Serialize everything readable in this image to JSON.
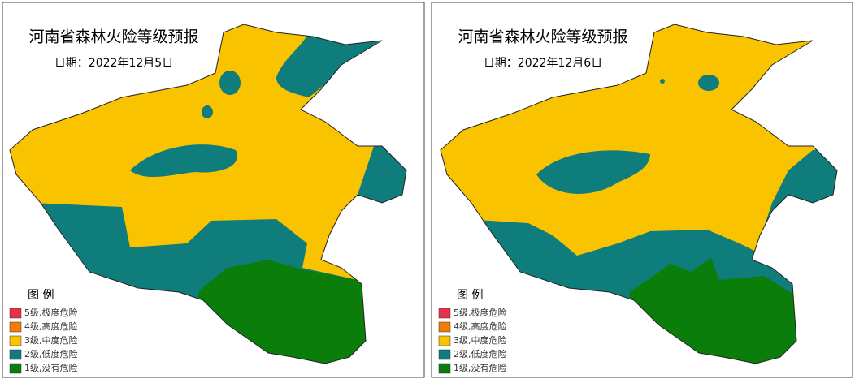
{
  "panels": [
    {
      "title": "河南省森林火险等级预报",
      "date": "日期：2022年12月5日"
    },
    {
      "title": "河南省森林火险等级预报",
      "date": "日期：2022年12月6日"
    }
  ],
  "legend": {
    "title": "图  例",
    "items": [
      {
        "label": "5级,极度危险",
        "color": "#e8304a"
      },
      {
        "label": "4级,高度危险",
        "color": "#f47c00"
      },
      {
        "label": "3级,中度危险",
        "color": "#f9c300"
      },
      {
        "label": "2级,低度危险",
        "color": "#0e7d7c"
      },
      {
        "label": "1级,没有危险",
        "color": "#0b7d0b"
      }
    ]
  }
}
